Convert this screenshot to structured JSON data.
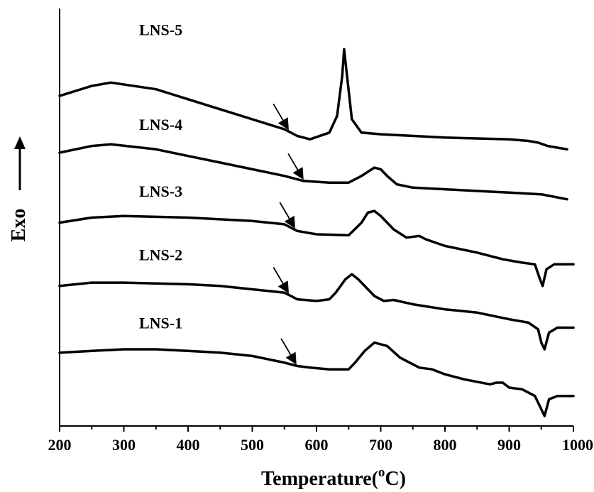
{
  "chart_data": {
    "type": "line",
    "xlabel": "Temperature(",
    "xlabel_sup": "o",
    "xlabel_unit": "C)",
    "ylabel": "Exo",
    "xlim": [
      200,
      1000
    ],
    "xticks": [
      "200",
      "300",
      "400",
      "500",
      "600",
      "700",
      "800",
      "900",
      "1000"
    ],
    "y_ticks_shown": false,
    "grid": false,
    "series": [
      {
        "name": "LNS-5",
        "points": [
          [
            200,
            0.79
          ],
          [
            250,
            0.82
          ],
          [
            280,
            0.83
          ],
          [
            350,
            0.81
          ],
          [
            400,
            0.78
          ],
          [
            450,
            0.75
          ],
          [
            500,
            0.72
          ],
          [
            550,
            0.69
          ],
          [
            570,
            0.67
          ],
          [
            590,
            0.66
          ],
          [
            620,
            0.68
          ],
          [
            632,
            0.73
          ],
          [
            640,
            0.85
          ],
          [
            643,
            0.93
          ],
          [
            647,
            0.86
          ],
          [
            655,
            0.72
          ],
          [
            670,
            0.68
          ],
          [
            700,
            0.675
          ],
          [
            800,
            0.665
          ],
          [
            900,
            0.66
          ],
          [
            930,
            0.655
          ],
          [
            945,
            0.65
          ],
          [
            960,
            0.64
          ],
          [
            990,
            0.63
          ]
        ],
        "marker_temp": 555
      },
      {
        "name": "LNS-4",
        "points": [
          [
            200,
            0.62
          ],
          [
            250,
            0.64
          ],
          [
            280,
            0.645
          ],
          [
            350,
            0.63
          ],
          [
            400,
            0.61
          ],
          [
            450,
            0.59
          ],
          [
            500,
            0.57
          ],
          [
            550,
            0.55
          ],
          [
            580,
            0.535
          ],
          [
            620,
            0.53
          ],
          [
            650,
            0.53
          ],
          [
            670,
            0.55
          ],
          [
            690,
            0.575
          ],
          [
            700,
            0.57
          ],
          [
            710,
            0.55
          ],
          [
            725,
            0.525
          ],
          [
            750,
            0.515
          ],
          [
            800,
            0.51
          ],
          [
            850,
            0.505
          ],
          [
            900,
            0.5
          ],
          [
            950,
            0.495
          ],
          [
            990,
            0.48
          ]
        ],
        "marker_temp": 578
      },
      {
        "name": "LNS-3",
        "points": [
          [
            200,
            0.41
          ],
          [
            250,
            0.425
          ],
          [
            300,
            0.43
          ],
          [
            400,
            0.425
          ],
          [
            450,
            0.42
          ],
          [
            500,
            0.415
          ],
          [
            550,
            0.405
          ],
          [
            570,
            0.385
          ],
          [
            600,
            0.375
          ],
          [
            650,
            0.372
          ],
          [
            670,
            0.41
          ],
          [
            680,
            0.44
          ],
          [
            690,
            0.445
          ],
          [
            700,
            0.43
          ],
          [
            720,
            0.39
          ],
          [
            740,
            0.365
          ],
          [
            760,
            0.37
          ],
          [
            770,
            0.36
          ],
          [
            800,
            0.34
          ],
          [
            850,
            0.32
          ],
          [
            890,
            0.3
          ],
          [
            920,
            0.29
          ],
          [
            940,
            0.285
          ],
          [
            948,
            0.24
          ],
          [
            952,
            0.22
          ],
          [
            958,
            0.27
          ],
          [
            970,
            0.285
          ],
          [
            1000,
            0.285
          ]
        ],
        "marker_temp": 565
      },
      {
        "name": "LNS-2",
        "points": [
          [
            200,
            0.22
          ],
          [
            250,
            0.23
          ],
          [
            300,
            0.23
          ],
          [
            400,
            0.225
          ],
          [
            450,
            0.22
          ],
          [
            500,
            0.21
          ],
          [
            550,
            0.2
          ],
          [
            570,
            0.18
          ],
          [
            600,
            0.175
          ],
          [
            620,
            0.18
          ],
          [
            630,
            0.2
          ],
          [
            645,
            0.24
          ],
          [
            655,
            0.255
          ],
          [
            665,
            0.24
          ],
          [
            690,
            0.19
          ],
          [
            705,
            0.175
          ],
          [
            720,
            0.178
          ],
          [
            750,
            0.165
          ],
          [
            800,
            0.15
          ],
          [
            850,
            0.14
          ],
          [
            900,
            0.12
          ],
          [
            930,
            0.11
          ],
          [
            945,
            0.09
          ],
          [
            950,
            0.05
          ],
          [
            955,
            0.03
          ],
          [
            962,
            0.08
          ],
          [
            975,
            0.095
          ],
          [
            1000,
            0.095
          ]
        ],
        "marker_temp": 555
      },
      {
        "name": "LNS-1",
        "points": [
          [
            200,
            0.02
          ],
          [
            250,
            0.025
          ],
          [
            300,
            0.03
          ],
          [
            350,
            0.03
          ],
          [
            400,
            0.025
          ],
          [
            450,
            0.02
          ],
          [
            500,
            0.01
          ],
          [
            550,
            -0.01
          ],
          [
            570,
            -0.02
          ],
          [
            590,
            -0.025
          ],
          [
            620,
            -0.03
          ],
          [
            650,
            -0.03
          ],
          [
            660,
            -0.01
          ],
          [
            675,
            0.025
          ],
          [
            690,
            0.05
          ],
          [
            710,
            0.04
          ],
          [
            730,
            0.005
          ],
          [
            760,
            -0.025
          ],
          [
            780,
            -0.03
          ],
          [
            800,
            -0.045
          ],
          [
            830,
            -0.06
          ],
          [
            870,
            -0.075
          ],
          [
            880,
            -0.07
          ],
          [
            890,
            -0.07
          ],
          [
            900,
            -0.085
          ],
          [
            920,
            -0.09
          ],
          [
            940,
            -0.11
          ],
          [
            950,
            -0.15
          ],
          [
            955,
            -0.17
          ],
          [
            962,
            -0.12
          ],
          [
            975,
            -0.11
          ],
          [
            1000,
            -0.11
          ]
        ],
        "marker_temp": 567
      }
    ]
  }
}
